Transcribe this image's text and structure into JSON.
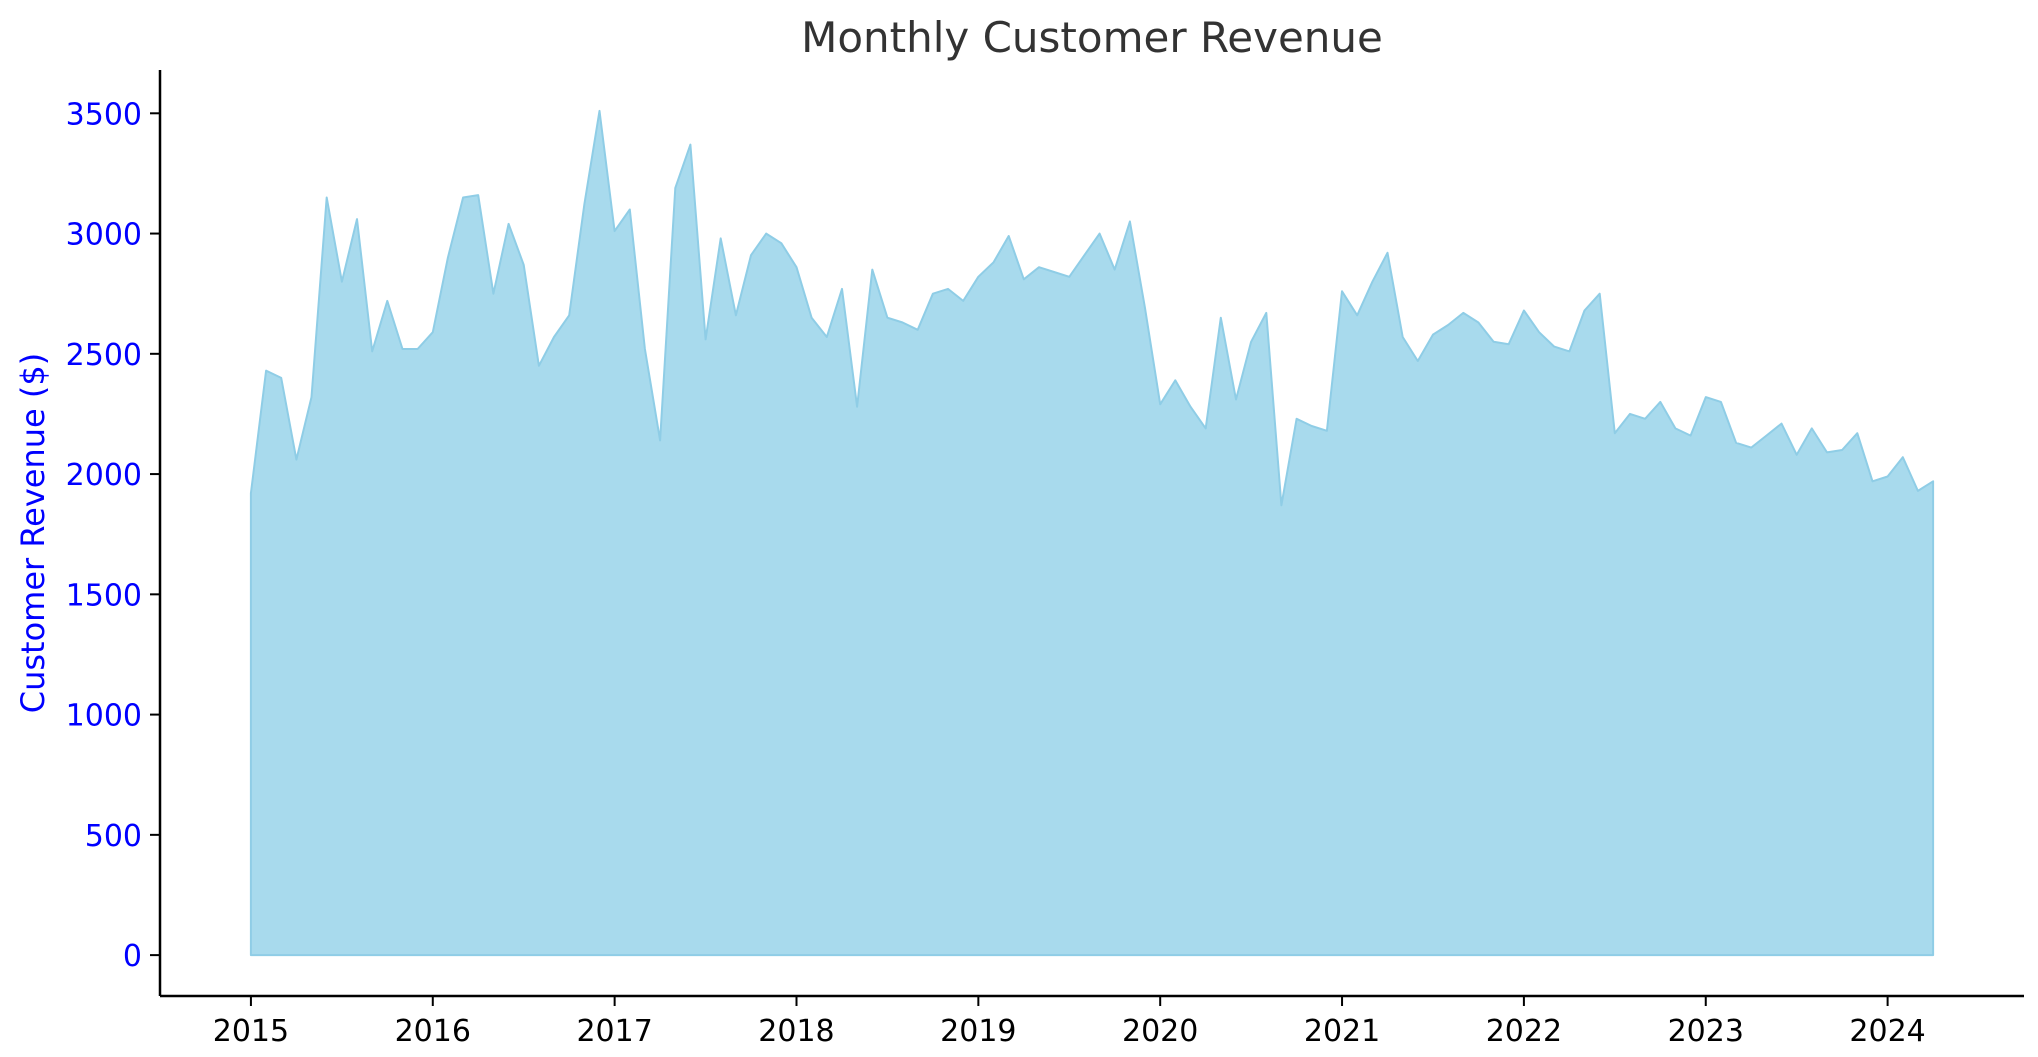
{
  "chart_data": {
    "type": "area",
    "title": "Monthly Customer Revenue",
    "xlabel": "",
    "ylabel": "Customer Revenue ($)",
    "x_ticks": [
      "2015",
      "2016",
      "2017",
      "2018",
      "2019",
      "2020",
      "2021",
      "2022",
      "2023",
      "2024"
    ],
    "y_ticks": [
      "0",
      "500",
      "1000",
      "1500",
      "2000",
      "2500",
      "3000",
      "3500"
    ],
    "xlim": [
      "2014-07",
      "2024-10"
    ],
    "ylim": [
      -170,
      3680
    ],
    "grid": false,
    "legend": "none",
    "colors": {
      "fill": "#a8daed",
      "line": "#8fcde6",
      "ylabel": "#0000ff",
      "xtick": "#000000"
    },
    "series": [
      {
        "start": "2015-01",
        "frequency": "monthly",
        "values": [
          1920,
          2430,
          2400,
          2060,
          2320,
          3150,
          2800,
          3060,
          2510,
          2720,
          2520,
          2520,
          2590,
          2900,
          3150,
          3160,
          2750,
          3040,
          2870,
          2450,
          2570,
          2660,
          3120,
          3510,
          3010,
          3100,
          2520,
          2140,
          3190,
          3370,
          2560,
          2980,
          2660,
          2910,
          3000,
          2960,
          2860,
          2650,
          2570,
          2770,
          2280,
          2850,
          2650,
          2630,
          2600,
          2750,
          2770,
          2720,
          2820,
          2880,
          2990,
          2810,
          2860,
          2840,
          2820,
          2910,
          3000,
          2850,
          3050,
          2690,
          2290,
          2390,
          2280,
          2190,
          2650,
          2310,
          2550,
          2670,
          1870,
          2230,
          2200,
          2180,
          2760,
          2660,
          2800,
          2920,
          2570,
          2470,
          2580,
          2620,
          2670,
          2630,
          2550,
          2540,
          2680,
          2590,
          2530,
          2510,
          2680,
          2750,
          2170,
          2250,
          2230,
          2300,
          2190,
          2160,
          2320,
          2300,
          2130,
          2110,
          2160,
          2210,
          2080,
          2190,
          2090,
          2100,
          2170,
          1970,
          1990,
          2070,
          1930,
          1970
        ]
      }
    ]
  }
}
